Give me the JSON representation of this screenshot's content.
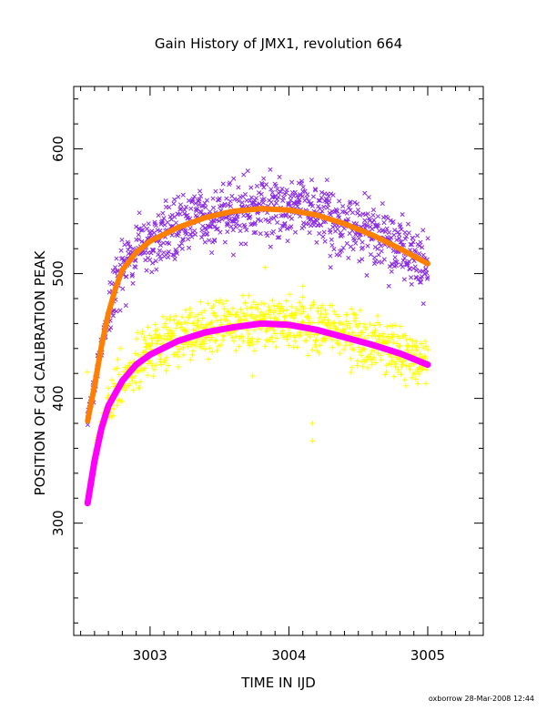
{
  "chart_data": {
    "type": "scatter",
    "title": "Gain History of JMX1, revolution 664",
    "xlabel": "TIME IN IJD",
    "ylabel": "POSITION OF Cd CALIBRATION PEAK",
    "footer": "oxborrow 28-Mar-2008 12:44",
    "xlim": [
      3002.45,
      3005.4
    ],
    "ylim": [
      210,
      650
    ],
    "xticks": [
      3003,
      3004,
      3005
    ],
    "xtick_labels": [
      "3003",
      "3004",
      "3005"
    ],
    "yticks": [
      300,
      400,
      500,
      600
    ],
    "ytick_labels": [
      "300",
      "400",
      "500",
      "600"
    ],
    "grid": false,
    "legend": "none",
    "series": [
      {
        "marker": "x",
        "color": "#8a2be2",
        "x_range": [
          3002.55,
          3005.0
        ],
        "trend": [
          [
            3002.55,
            382
          ],
          [
            3002.6,
            410
          ],
          [
            3002.65,
            442
          ],
          [
            3002.7,
            468
          ],
          [
            3002.75,
            488
          ],
          [
            3002.8,
            503
          ],
          [
            3002.9,
            517
          ],
          [
            3003.0,
            526
          ],
          [
            3003.2,
            537
          ],
          [
            3003.4,
            545
          ],
          [
            3003.6,
            550
          ],
          [
            3003.8,
            552
          ],
          [
            3004.0,
            551
          ],
          [
            3004.2,
            547
          ],
          [
            3004.4,
            540
          ],
          [
            3004.6,
            531
          ],
          [
            3004.8,
            520
          ],
          [
            3005.0,
            508
          ]
        ],
        "scatter": 18,
        "outliers": [
          [
            3004.72,
            490
          ],
          [
            3004.95,
            493
          ],
          [
            3005.0,
            497
          ],
          [
            3003.6,
            515
          ],
          [
            3004.3,
            505
          ]
        ]
      },
      {
        "marker": "+",
        "color": "#ffff00",
        "x_range": [
          3002.55,
          3005.0
        ],
        "trend": [
          [
            3002.55,
            318
          ],
          [
            3002.6,
            352
          ],
          [
            3002.65,
            378
          ],
          [
            3002.7,
            395
          ],
          [
            3002.8,
            415
          ],
          [
            3002.9,
            428
          ],
          [
            3003.0,
            436
          ],
          [
            3003.2,
            447
          ],
          [
            3003.4,
            454
          ],
          [
            3003.6,
            458
          ],
          [
            3003.8,
            461
          ],
          [
            3004.0,
            460
          ],
          [
            3004.2,
            456
          ],
          [
            3004.4,
            450
          ],
          [
            3004.6,
            444
          ],
          [
            3004.8,
            437
          ],
          [
            3005.0,
            427
          ]
        ],
        "scatter": 15,
        "outliers": [
          [
            3004.17,
            380
          ],
          [
            3004.17,
            366
          ],
          [
            3003.74,
            418
          ],
          [
            3003.83,
            505
          ],
          [
            3004.1,
            490
          ]
        ]
      },
      {
        "marker": "line",
        "color": "#ff7f00",
        "width": 6,
        "points": [
          [
            3002.55,
            382
          ],
          [
            3002.6,
            410
          ],
          [
            3002.65,
            442
          ],
          [
            3002.7,
            468
          ],
          [
            3002.75,
            488
          ],
          [
            3002.8,
            503
          ],
          [
            3002.9,
            517
          ],
          [
            3003.0,
            526
          ],
          [
            3003.2,
            537
          ],
          [
            3003.4,
            545
          ],
          [
            3003.6,
            550
          ],
          [
            3003.8,
            552
          ],
          [
            3004.0,
            551
          ],
          [
            3004.2,
            547
          ],
          [
            3004.4,
            540
          ],
          [
            3004.6,
            531
          ],
          [
            3004.8,
            520
          ],
          [
            3005.0,
            508
          ]
        ]
      },
      {
        "marker": "line",
        "color": "#ff00ff",
        "width": 7,
        "points": [
          [
            3002.55,
            316
          ],
          [
            3002.6,
            350
          ],
          [
            3002.65,
            376
          ],
          [
            3002.7,
            394
          ],
          [
            3002.8,
            414
          ],
          [
            3002.9,
            427
          ],
          [
            3003.0,
            435
          ],
          [
            3003.2,
            446
          ],
          [
            3003.4,
            453
          ],
          [
            3003.6,
            457
          ],
          [
            3003.8,
            460
          ],
          [
            3004.0,
            459
          ],
          [
            3004.2,
            455
          ],
          [
            3004.4,
            449
          ],
          [
            3004.6,
            443
          ],
          [
            3004.8,
            436
          ],
          [
            3005.0,
            427
          ]
        ]
      }
    ]
  }
}
